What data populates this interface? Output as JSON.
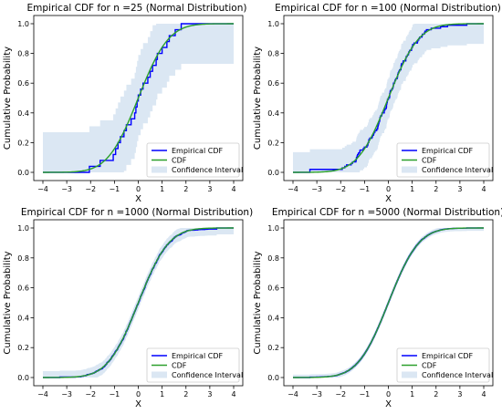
{
  "chart_data": [
    {
      "type": "line",
      "title": "Empirical CDF for n =25 (Normal Distribution)",
      "xlabel": "X",
      "ylabel": "Cumulative Probability",
      "xlim": [
        -4,
        4
      ],
      "ylim": [
        0,
        1
      ],
      "xticks": [
        "−4",
        "−3",
        "−2",
        "−1",
        "0",
        "1",
        "2",
        "3",
        "4"
      ],
      "yticks": [
        "0.0",
        "0.2",
        "0.4",
        "0.6",
        "0.8",
        "1.0"
      ],
      "grid": false,
      "legend_position": "lower-right",
      "legend": [
        "Empirical CDF",
        "CDF",
        "Confidence Interval"
      ],
      "colors": {
        "empirical": "#0000ff",
        "cdf": "#2ca02c",
        "band": "#dbe7f3"
      },
      "samples": [
        -2.05,
        -1.6,
        -1.05,
        -0.95,
        -0.85,
        -0.75,
        -0.6,
        -0.5,
        -0.3,
        -0.15,
        -0.1,
        -0.05,
        0.0,
        0.1,
        0.2,
        0.4,
        0.5,
        0.6,
        0.75,
        0.8,
        1.0,
        1.2,
        1.3,
        1.55,
        1.8
      ],
      "band_half_width": 0.27
    },
    {
      "type": "line",
      "title": "Empirical CDF for n =100 (Normal Distribution)",
      "xlabel": "X",
      "ylabel": "Cumulative Probability",
      "xlim": [
        -4,
        4
      ],
      "ylim": [
        0,
        1
      ],
      "xticks": [
        "−4",
        "−3",
        "−2",
        "−1",
        "0",
        "1",
        "2",
        "3",
        "4"
      ],
      "yticks": [
        "0.0",
        "0.2",
        "0.4",
        "0.6",
        "0.8",
        "1.0"
      ],
      "grid": false,
      "legend_position": "lower-right",
      "legend": [
        "Empirical CDF",
        "CDF",
        "Confidence Interval"
      ],
      "colors": {
        "empirical": "#0000ff",
        "cdf": "#2ca02c",
        "band": "#dbe7f3"
      },
      "sample_size": 100,
      "band_half_width": 0.136
    },
    {
      "type": "line",
      "title": "Empirical CDF for n =1000 (Normal Distribution)",
      "xlabel": "X",
      "ylabel": "Cumulative Probability",
      "xlim": [
        -4,
        4
      ],
      "ylim": [
        0,
        1
      ],
      "xticks": [
        "−4",
        "−3",
        "−2",
        "−1",
        "0",
        "1",
        "2",
        "3",
        "4"
      ],
      "yticks": [
        "0.0",
        "0.2",
        "0.4",
        "0.6",
        "0.8",
        "1.0"
      ],
      "grid": false,
      "legend_position": "lower-right",
      "legend": [
        "Empirical CDF",
        "CDF",
        "Confidence Interval"
      ],
      "colors": {
        "empirical": "#0000ff",
        "cdf": "#2ca02c",
        "band": "#dbe7f3"
      },
      "sample_size": 1000,
      "band_half_width": 0.043
    },
    {
      "type": "line",
      "title": "Empirical CDF for n =5000 (Normal Distribution)",
      "xlabel": "X",
      "ylabel": "Cumulative Probability",
      "xlim": [
        -4,
        4
      ],
      "ylim": [
        0,
        1
      ],
      "xticks": [
        "−4",
        "−3",
        "−2",
        "−1",
        "0",
        "1",
        "2",
        "3",
        "4"
      ],
      "yticks": [
        "0.0",
        "0.2",
        "0.4",
        "0.6",
        "0.8",
        "1.0"
      ],
      "grid": false,
      "legend_position": "lower-right",
      "legend": [
        "Empirical CDF",
        "CDF",
        "Confidence Interval"
      ],
      "colors": {
        "empirical": "#0000ff",
        "cdf": "#2ca02c",
        "band": "#dbe7f3"
      },
      "sample_size": 5000,
      "band_half_width": 0.019
    }
  ]
}
